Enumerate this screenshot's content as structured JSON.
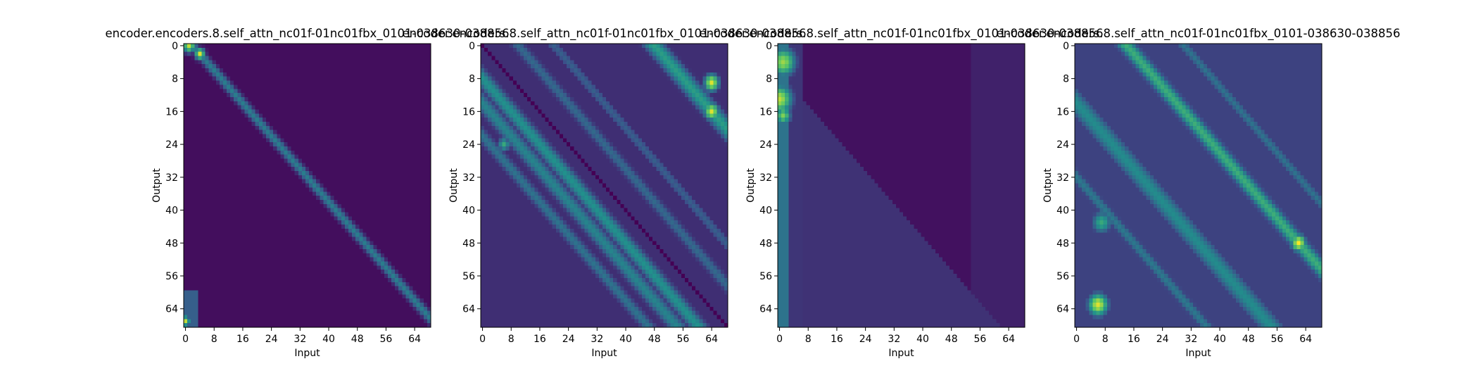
{
  "figure": {
    "background": "#ffffff",
    "colormap": "viridis",
    "colormap_stops": [
      "#440154",
      "#3b528b",
      "#21918c",
      "#5ec962",
      "#fde725"
    ]
  },
  "chart_data": [
    {
      "type": "heatmap",
      "title": "encoder.encoders.8.self_attn_nc01f-01nc01fbx_0101-038630-038856",
      "xlabel": "Input",
      "ylabel": "Output",
      "size": 69,
      "xlim": [
        -0.5,
        68.5
      ],
      "ylim": [
        68.5,
        -0.5
      ],
      "x_ticks": [
        0,
        8,
        16,
        24,
        32,
        40,
        48,
        56,
        64
      ],
      "y_ticks": [
        0,
        8,
        16,
        24,
        32,
        40,
        48,
        56,
        64
      ],
      "value_range": [
        0,
        1
      ],
      "pattern": [
        {
          "kind": "background",
          "value": 0.04
        },
        {
          "kind": "diagonal",
          "offset": 2,
          "width": 1.3,
          "value": 0.42
        },
        {
          "kind": "diagonal",
          "offset": 1,
          "width": 0.6,
          "value": 0.3
        },
        {
          "kind": "blob",
          "row": 0,
          "col": 1,
          "r": 1.2,
          "value": 0.9
        },
        {
          "kind": "blob",
          "row": 2,
          "col": 4,
          "r": 1.0,
          "value": 0.95
        },
        {
          "kind": "blob",
          "row": 67,
          "col": 0,
          "r": 0.9,
          "value": 0.9
        },
        {
          "kind": "box",
          "r0": 60,
          "r1": 68,
          "c0": 0,
          "c1": 3,
          "value": 0.3
        }
      ]
    },
    {
      "type": "heatmap",
      "title": "encoder.encoders.8.self_attn_nc01f-01nc01fbx_0101-038630-038856",
      "xlabel": "Input",
      "ylabel": "Output",
      "size": 69,
      "xlim": [
        -0.5,
        68.5
      ],
      "ylim": [
        68.5,
        -0.5
      ],
      "x_ticks": [
        0,
        8,
        16,
        24,
        32,
        40,
        48,
        56,
        64
      ],
      "y_ticks": [
        0,
        8,
        16,
        24,
        32,
        40,
        48,
        56,
        64
      ],
      "value_range": [
        0,
        1
      ],
      "pattern": [
        {
          "kind": "background",
          "value": 0.14
        },
        {
          "kind": "diagonal",
          "offset": 0,
          "width": 0.45,
          "value": 0.0
        },
        {
          "kind": "diagonal",
          "offset": -8,
          "width": 2.2,
          "value": 0.5
        },
        {
          "kind": "diagonal",
          "offset": -14,
          "width": 2.2,
          "value": 0.45
        },
        {
          "kind": "diagonal",
          "offset": -22,
          "width": 1.8,
          "value": 0.38
        },
        {
          "kind": "diagonal",
          "offset": 10,
          "width": 1.8,
          "value": 0.34
        },
        {
          "kind": "diagonal",
          "offset": 20,
          "width": 1.6,
          "value": 0.3
        },
        {
          "kind": "diagonal",
          "offset": 48,
          "width": 2.5,
          "value": 0.55
        },
        {
          "kind": "blob",
          "row": 9,
          "col": 64,
          "r": 1.5,
          "value": 0.95
        },
        {
          "kind": "blob",
          "row": 16,
          "col": 64,
          "r": 1.5,
          "value": 0.95
        },
        {
          "kind": "blob",
          "row": 24,
          "col": 6,
          "r": 1.2,
          "value": 0.6
        }
      ]
    },
    {
      "type": "heatmap",
      "title": "encoder.encoders.8.self_attn_nc01f-01nc01fbx_0101-038630-038856",
      "xlabel": "Input",
      "ylabel": "Output",
      "size": 69,
      "xlim": [
        -0.5,
        68.5
      ],
      "ylim": [
        68.5,
        -0.5
      ],
      "x_ticks": [
        0,
        8,
        16,
        24,
        32,
        40,
        48,
        56,
        64
      ],
      "y_ticks": [
        0,
        8,
        16,
        24,
        32,
        40,
        48,
        56,
        64
      ],
      "value_range": [
        0,
        1
      ],
      "pattern": [
        {
          "kind": "background",
          "value": 0.05
        },
        {
          "kind": "box",
          "r0": 0,
          "r1": 68,
          "c0": 0,
          "c1": 2,
          "value": 0.38
        },
        {
          "kind": "box",
          "r0": 0,
          "r1": 68,
          "c0": 3,
          "c1": 6,
          "value": 0.16
        },
        {
          "kind": "blob",
          "row": 4,
          "col": 1,
          "r": 2.5,
          "value": 0.85
        },
        {
          "kind": "blob",
          "row": 13,
          "col": 0,
          "r": 2.5,
          "value": 0.9
        },
        {
          "kind": "blob",
          "row": 17,
          "col": 1,
          "r": 1.5,
          "value": 0.8
        },
        {
          "kind": "lowertri",
          "offset": 7,
          "value": 0.15
        },
        {
          "kind": "box",
          "r0": 0,
          "r1": 68,
          "c0": 54,
          "c1": 68,
          "value": 0.1
        }
      ]
    },
    {
      "type": "heatmap",
      "title": "encoder.encoders.8.self_attn_nc01f-01nc01fbx_0101-038630-038856",
      "xlabel": "Input",
      "ylabel": "Output",
      "size": 69,
      "xlim": [
        -0.5,
        68.5
      ],
      "ylim": [
        68.5,
        -0.5
      ],
      "x_ticks": [
        0,
        8,
        16,
        24,
        32,
        40,
        48,
        56,
        64
      ],
      "y_ticks": [
        0,
        8,
        16,
        24,
        32,
        40,
        48,
        56,
        64
      ],
      "value_range": [
        0,
        1
      ],
      "pattern": [
        {
          "kind": "background",
          "value": 0.2
        },
        {
          "kind": "diagonal",
          "offset": -14,
          "width": 3.0,
          "value": 0.48
        },
        {
          "kind": "diagonal",
          "offset": 14,
          "width": 2.2,
          "value": 0.62
        },
        {
          "kind": "diagonal",
          "offset": 0,
          "width": 1.2,
          "value": 0.06
        },
        {
          "kind": "diagonal",
          "offset": 30,
          "width": 1.5,
          "value": 0.38
        },
        {
          "kind": "diagonal",
          "offset": -32,
          "width": 1.8,
          "value": 0.4
        },
        {
          "kind": "blob",
          "row": 48,
          "col": 62,
          "r": 1.5,
          "value": 1.0
        },
        {
          "kind": "blob",
          "row": 63,
          "col": 6,
          "r": 2.0,
          "value": 0.95
        },
        {
          "kind": "blob",
          "row": 43,
          "col": 7,
          "r": 2.0,
          "value": 0.6
        },
        {
          "kind": "box",
          "r0": 0,
          "r1": 68,
          "c0": 0,
          "c1": 1,
          "value": 0.08
        }
      ]
    }
  ]
}
